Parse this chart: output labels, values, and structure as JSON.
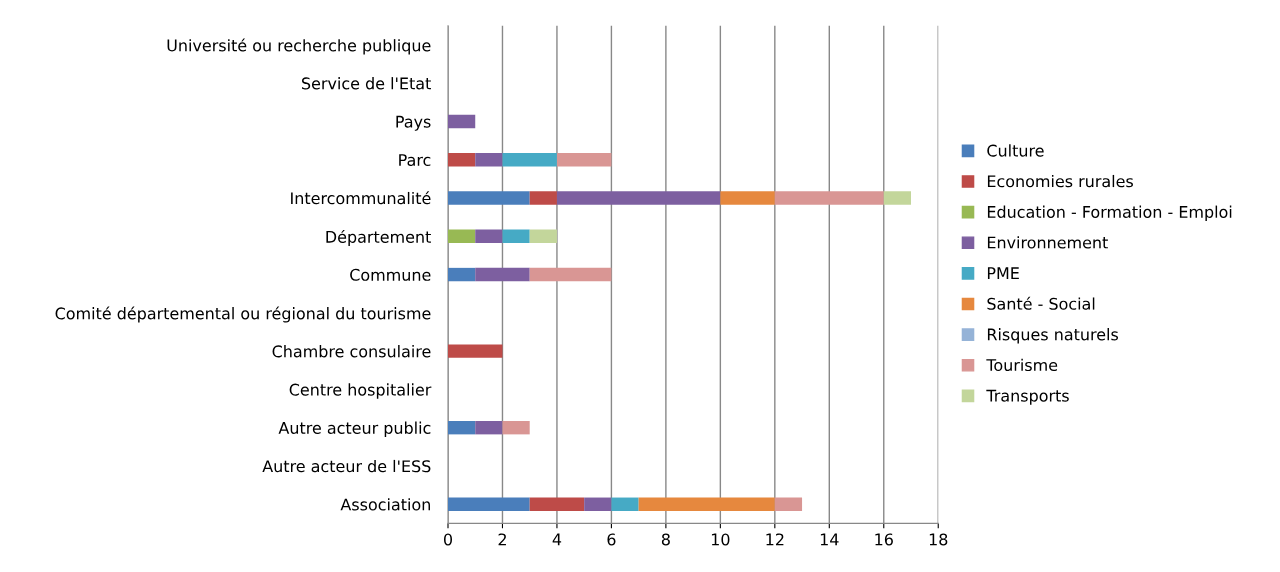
{
  "chart_data": {
    "type": "bar",
    "orientation": "horizontal",
    "stacked": true,
    "categories": [
      "Université ou recherche publique",
      "Service de l'Etat",
      "Pays",
      "Parc",
      "Intercommunalité",
      "Département",
      "Commune",
      "Comité départemental ou régional du tourisme",
      "Chambre consulaire",
      "Centre hospitalier",
      "Autre acteur public",
      "Autre acteur de l'ESS",
      "Association"
    ],
    "series": [
      {
        "name": "Culture",
        "color": "#4a7ebb",
        "values": [
          null,
          null,
          null,
          null,
          3,
          null,
          1,
          null,
          null,
          null,
          1,
          null,
          3
        ]
      },
      {
        "name": "Economies rurales",
        "color": "#be4b48",
        "values": [
          null,
          null,
          null,
          1,
          1,
          null,
          null,
          null,
          2,
          null,
          null,
          null,
          2
        ]
      },
      {
        "name": "Education - Formation - Emploi",
        "color": "#98b954",
        "values": [
          null,
          null,
          null,
          null,
          null,
          1,
          null,
          null,
          null,
          null,
          null,
          null,
          null
        ]
      },
      {
        "name": "Environnement",
        "color": "#7d5fa0",
        "values": [
          null,
          null,
          1,
          1,
          6,
          1,
          2,
          null,
          null,
          null,
          1,
          null,
          1
        ]
      },
      {
        "name": "PME",
        "color": "#46aac5",
        "values": [
          null,
          null,
          null,
          2,
          null,
          1,
          null,
          null,
          null,
          null,
          null,
          null,
          1
        ]
      },
      {
        "name": "Santé - Social",
        "color": "#e6883e",
        "values": [
          null,
          null,
          null,
          null,
          2,
          null,
          null,
          null,
          null,
          null,
          null,
          null,
          5
        ]
      },
      {
        "name": "Risques naturels",
        "color": "#95b3d7",
        "values": [
          null,
          null,
          null,
          null,
          null,
          null,
          null,
          null,
          null,
          null,
          null,
          null,
          null
        ]
      },
      {
        "name": "Tourisme",
        "color": "#d99694",
        "values": [
          null,
          null,
          null,
          2,
          4,
          null,
          3,
          null,
          null,
          null,
          1,
          null,
          1
        ]
      },
      {
        "name": "Transports",
        "color": "#c3d69b",
        "values": [
          null,
          null,
          null,
          null,
          1,
          1,
          null,
          null,
          null,
          null,
          null,
          null,
          null
        ]
      }
    ],
    "xlim": [
      0,
      18
    ],
    "xticks": [
      0,
      2,
      4,
      6,
      8,
      10,
      12,
      14,
      16,
      18
    ],
    "grid": "x",
    "legend": "right"
  }
}
